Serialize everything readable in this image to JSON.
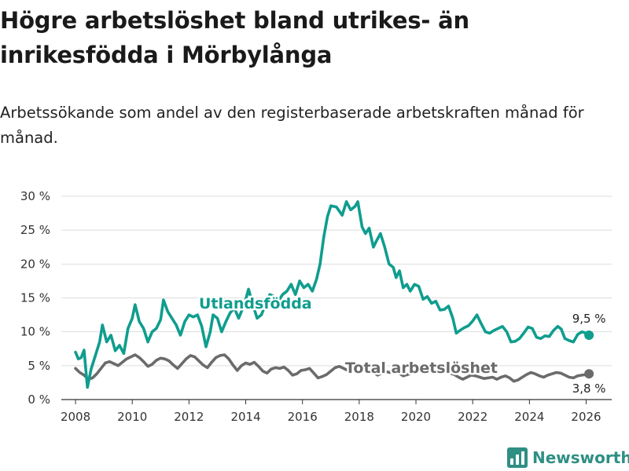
{
  "header": {
    "title": "Högre arbetslöshet bland utrikes- än inrikesfödda i Mörbylånga",
    "subtitle": "Arbetssökande som andel av den registerbaserade arbetskraften månad för månad."
  },
  "brand": {
    "name": "Newsworthy"
  },
  "colors": {
    "utlandsfodda": "#0f9d8e",
    "total": "#6b6b6b",
    "grid": "#dddddd",
    "axis": "#333333",
    "brand": "#2f8f83"
  },
  "chart_data": {
    "type": "line",
    "title": "Högre arbetslöshet bland utrikes- än inrikesfödda i Mörbylånga",
    "subtitle": "Arbetssökande som andel av den registerbaserade arbetskraften månad för månad.",
    "xlabel": "",
    "ylabel": "",
    "xlim": [
      2007.5,
      2026.9
    ],
    "ylim": [
      0,
      30
    ],
    "x_ticks": [
      2008,
      2010,
      2012,
      2014,
      2016,
      2018,
      2020,
      2022,
      2024,
      2026
    ],
    "x_tick_labels": [
      "2008",
      "2010",
      "2012",
      "2014",
      "2016",
      "2018",
      "2020",
      "2022",
      "2024",
      "2026"
    ],
    "y_ticks": [
      0,
      5,
      10,
      15,
      20,
      25,
      30
    ],
    "y_tick_labels": [
      "0 %",
      "5 %",
      "10 %",
      "15 %",
      "20 %",
      "25 %",
      "30 %"
    ],
    "grid": true,
    "series": [
      {
        "name": "Utlandsfödda",
        "end_label": "9,5 %",
        "end_value": 9.5,
        "points": [
          [
            2008.0,
            7.0
          ],
          [
            2008.1,
            6.0
          ],
          [
            2008.2,
            6.2
          ],
          [
            2008.3,
            7.3
          ],
          [
            2008.42,
            1.8
          ],
          [
            2008.55,
            4.5
          ],
          [
            2008.7,
            6.5
          ],
          [
            2008.85,
            8.5
          ],
          [
            2008.95,
            11.0
          ],
          [
            2009.1,
            8.5
          ],
          [
            2009.25,
            9.5
          ],
          [
            2009.4,
            7.2
          ],
          [
            2009.55,
            8.0
          ],
          [
            2009.7,
            6.8
          ],
          [
            2009.85,
            10.5
          ],
          [
            2010.0,
            12.0
          ],
          [
            2010.1,
            14.0
          ],
          [
            2010.25,
            11.5
          ],
          [
            2010.4,
            10.5
          ],
          [
            2010.55,
            8.5
          ],
          [
            2010.7,
            10.0
          ],
          [
            2010.85,
            10.5
          ],
          [
            2011.0,
            11.8
          ],
          [
            2011.1,
            14.7
          ],
          [
            2011.25,
            13.0
          ],
          [
            2011.4,
            12.0
          ],
          [
            2011.55,
            11.0
          ],
          [
            2011.7,
            9.5
          ],
          [
            2011.85,
            11.5
          ],
          [
            2012.0,
            12.5
          ],
          [
            2012.15,
            12.2
          ],
          [
            2012.3,
            12.5
          ],
          [
            2012.45,
            10.8
          ],
          [
            2012.6,
            7.8
          ],
          [
            2012.75,
            10.0
          ],
          [
            2012.85,
            12.5
          ],
          [
            2013.0,
            12.0
          ],
          [
            2013.15,
            10.0
          ],
          [
            2013.3,
            11.5
          ],
          [
            2013.45,
            12.8
          ],
          [
            2013.6,
            13.5
          ],
          [
            2013.75,
            12.0
          ],
          [
            2013.95,
            14.0
          ],
          [
            2014.1,
            16.3
          ],
          [
            2014.25,
            14.0
          ],
          [
            2014.4,
            12.0
          ],
          [
            2014.55,
            12.5
          ],
          [
            2014.7,
            14.0
          ],
          [
            2014.85,
            15.5
          ],
          [
            2015.0,
            15.2
          ],
          [
            2015.15,
            14.5
          ],
          [
            2015.3,
            15.5
          ],
          [
            2015.45,
            16.0
          ],
          [
            2015.6,
            17.0
          ],
          [
            2015.75,
            15.5
          ],
          [
            2015.9,
            17.5
          ],
          [
            2016.05,
            16.5
          ],
          [
            2016.2,
            17.0
          ],
          [
            2016.35,
            16.0
          ],
          [
            2016.5,
            17.8
          ],
          [
            2016.62,
            20.0
          ],
          [
            2016.75,
            24.0
          ],
          [
            2016.88,
            27.0
          ],
          [
            2017.0,
            28.6
          ],
          [
            2017.2,
            28.4
          ],
          [
            2017.4,
            27.2
          ],
          [
            2017.55,
            29.2
          ],
          [
            2017.7,
            28.0
          ],
          [
            2017.85,
            28.5
          ],
          [
            2017.95,
            29.2
          ],
          [
            2018.1,
            25.5
          ],
          [
            2018.22,
            24.5
          ],
          [
            2018.35,
            25.3
          ],
          [
            2018.5,
            22.5
          ],
          [
            2018.62,
            23.5
          ],
          [
            2018.75,
            24.5
          ],
          [
            2018.9,
            22.5
          ],
          [
            2019.05,
            20.0
          ],
          [
            2019.2,
            19.5
          ],
          [
            2019.3,
            18.0
          ],
          [
            2019.42,
            19.0
          ],
          [
            2019.55,
            16.5
          ],
          [
            2019.68,
            17.0
          ],
          [
            2019.8,
            16.0
          ],
          [
            2019.95,
            17.0
          ],
          [
            2020.1,
            16.7
          ],
          [
            2020.25,
            14.8
          ],
          [
            2020.4,
            15.2
          ],
          [
            2020.55,
            14.2
          ],
          [
            2020.7,
            14.5
          ],
          [
            2020.85,
            13.2
          ],
          [
            2021.0,
            13.3
          ],
          [
            2021.15,
            13.8
          ],
          [
            2021.3,
            12.0
          ],
          [
            2021.42,
            9.8
          ],
          [
            2021.55,
            10.2
          ],
          [
            2021.7,
            10.6
          ],
          [
            2021.85,
            10.9
          ],
          [
            2022.0,
            11.6
          ],
          [
            2022.15,
            12.5
          ],
          [
            2022.3,
            11.2
          ],
          [
            2022.45,
            10.0
          ],
          [
            2022.6,
            9.8
          ],
          [
            2022.75,
            10.2
          ],
          [
            2022.9,
            10.5
          ],
          [
            2023.05,
            10.8
          ],
          [
            2023.2,
            10.0
          ],
          [
            2023.35,
            8.5
          ],
          [
            2023.5,
            8.6
          ],
          [
            2023.65,
            9.0
          ],
          [
            2023.8,
            9.8
          ],
          [
            2023.95,
            10.7
          ],
          [
            2024.1,
            10.5
          ],
          [
            2024.25,
            9.2
          ],
          [
            2024.4,
            9.0
          ],
          [
            2024.55,
            9.4
          ],
          [
            2024.7,
            9.3
          ],
          [
            2024.85,
            10.2
          ],
          [
            2025.0,
            10.8
          ],
          [
            2025.12,
            10.4
          ],
          [
            2025.25,
            9.0
          ],
          [
            2025.4,
            8.7
          ],
          [
            2025.55,
            8.5
          ],
          [
            2025.7,
            9.6
          ],
          [
            2025.85,
            10.0
          ],
          [
            2026.0,
            9.8
          ],
          [
            2026.1,
            9.5
          ]
        ]
      },
      {
        "name": "Total arbetslöshet",
        "end_label": "3,8 %",
        "end_value": 3.8,
        "points": [
          [
            2008.0,
            4.6
          ],
          [
            2008.15,
            4.0
          ],
          [
            2008.3,
            3.6
          ],
          [
            2008.45,
            3.0
          ],
          [
            2008.6,
            3.2
          ],
          [
            2008.75,
            3.8
          ],
          [
            2008.9,
            4.6
          ],
          [
            2009.05,
            5.4
          ],
          [
            2009.2,
            5.6
          ],
          [
            2009.35,
            5.3
          ],
          [
            2009.5,
            5.0
          ],
          [
            2009.65,
            5.5
          ],
          [
            2009.8,
            6.0
          ],
          [
            2009.95,
            6.3
          ],
          [
            2010.1,
            6.6
          ],
          [
            2010.25,
            6.2
          ],
          [
            2010.4,
            5.6
          ],
          [
            2010.55,
            4.9
          ],
          [
            2010.7,
            5.2
          ],
          [
            2010.85,
            5.8
          ],
          [
            2011.0,
            6.1
          ],
          [
            2011.15,
            6.0
          ],
          [
            2011.3,
            5.7
          ],
          [
            2011.45,
            5.1
          ],
          [
            2011.6,
            4.6
          ],
          [
            2011.75,
            5.3
          ],
          [
            2011.9,
            6.0
          ],
          [
            2012.05,
            6.5
          ],
          [
            2012.2,
            6.3
          ],
          [
            2012.35,
            5.7
          ],
          [
            2012.5,
            5.1
          ],
          [
            2012.65,
            4.7
          ],
          [
            2012.8,
            5.5
          ],
          [
            2012.95,
            6.2
          ],
          [
            2013.1,
            6.5
          ],
          [
            2013.25,
            6.6
          ],
          [
            2013.4,
            6.0
          ],
          [
            2013.55,
            5.1
          ],
          [
            2013.7,
            4.3
          ],
          [
            2013.85,
            5.0
          ],
          [
            2014.0,
            5.4
          ],
          [
            2014.15,
            5.2
          ],
          [
            2014.3,
            5.5
          ],
          [
            2014.45,
            4.9
          ],
          [
            2014.6,
            4.2
          ],
          [
            2014.75,
            3.9
          ],
          [
            2014.9,
            4.5
          ],
          [
            2015.05,
            4.7
          ],
          [
            2015.2,
            4.6
          ],
          [
            2015.35,
            4.8
          ],
          [
            2015.5,
            4.3
          ],
          [
            2015.65,
            3.6
          ],
          [
            2015.8,
            3.8
          ],
          [
            2015.95,
            4.3
          ],
          [
            2016.1,
            4.4
          ],
          [
            2016.25,
            4.6
          ],
          [
            2016.4,
            3.9
          ],
          [
            2016.55,
            3.2
          ],
          [
            2016.7,
            3.4
          ],
          [
            2016.85,
            3.7
          ],
          [
            2017.0,
            4.2
          ],
          [
            2017.15,
            4.7
          ],
          [
            2017.3,
            4.9
          ],
          [
            2017.45,
            4.6
          ],
          [
            2017.6,
            4.3
          ],
          [
            2017.75,
            4.7
          ],
          [
            2017.9,
            4.9
          ],
          [
            2018.05,
            4.5
          ],
          [
            2018.2,
            4.2
          ],
          [
            2018.35,
            4.4
          ],
          [
            2018.5,
            4.0
          ],
          [
            2018.65,
            3.6
          ],
          [
            2018.8,
            3.9
          ],
          [
            2018.95,
            4.1
          ],
          [
            2019.1,
            4.0
          ],
          [
            2019.25,
            4.3
          ],
          [
            2019.4,
            3.9
          ],
          [
            2019.55,
            3.5
          ],
          [
            2019.7,
            3.7
          ],
          [
            2019.85,
            3.9
          ],
          [
            2020.0,
            4.1
          ],
          [
            2020.15,
            4.5
          ],
          [
            2020.3,
            4.4
          ],
          [
            2020.45,
            4.1
          ],
          [
            2020.6,
            4.0
          ],
          [
            2020.75,
            4.2
          ],
          [
            2020.9,
            4.5
          ],
          [
            2021.05,
            4.3
          ],
          [
            2021.2,
            3.9
          ],
          [
            2021.35,
            3.7
          ],
          [
            2021.5,
            3.3
          ],
          [
            2021.65,
            3.0
          ],
          [
            2021.8,
            3.3
          ],
          [
            2021.95,
            3.6
          ],
          [
            2022.1,
            3.5
          ],
          [
            2022.25,
            3.3
          ],
          [
            2022.4,
            3.1
          ],
          [
            2022.55,
            3.2
          ],
          [
            2022.7,
            3.3
          ],
          [
            2022.85,
            3.0
          ],
          [
            2023.0,
            3.3
          ],
          [
            2023.15,
            3.5
          ],
          [
            2023.3,
            3.2
          ],
          [
            2023.45,
            2.7
          ],
          [
            2023.6,
            2.9
          ],
          [
            2023.75,
            3.3
          ],
          [
            2023.9,
            3.7
          ],
          [
            2024.05,
            4.0
          ],
          [
            2024.2,
            3.8
          ],
          [
            2024.35,
            3.5
          ],
          [
            2024.5,
            3.3
          ],
          [
            2024.65,
            3.6
          ],
          [
            2024.8,
            3.8
          ],
          [
            2024.95,
            4.0
          ],
          [
            2025.1,
            3.9
          ],
          [
            2025.25,
            3.6
          ],
          [
            2025.4,
            3.3
          ],
          [
            2025.55,
            3.2
          ],
          [
            2025.7,
            3.5
          ],
          [
            2025.85,
            3.6
          ],
          [
            2026.0,
            3.7
          ],
          [
            2026.1,
            3.8
          ]
        ]
      }
    ]
  }
}
